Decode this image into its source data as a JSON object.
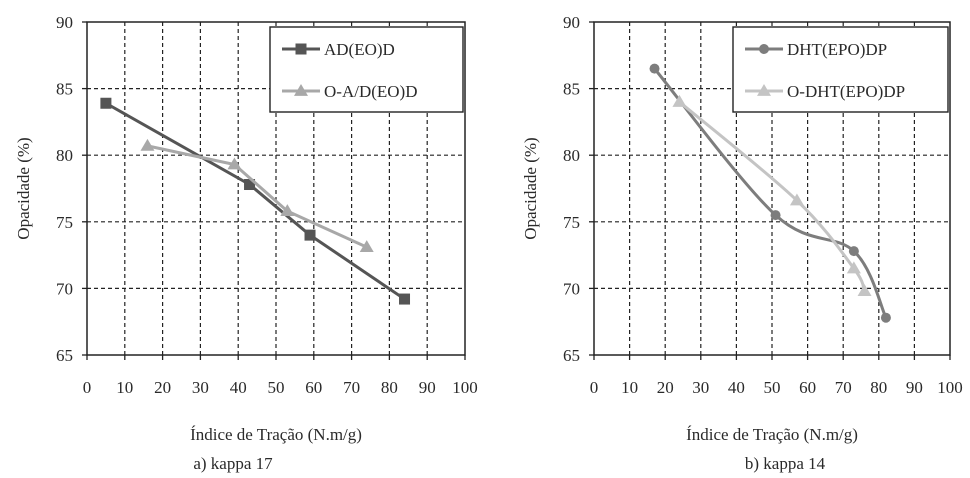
{
  "chart_data": [
    {
      "type": "line",
      "caption": "a) kappa 17",
      "xlabel": "Índice de Tração (N.m/g)",
      "ylabel": "Opacidade (%)",
      "xlim": [
        0,
        100
      ],
      "ylim": [
        65,
        90
      ],
      "xticks": [
        "0",
        "10",
        "20",
        "30",
        "40",
        "50",
        "60",
        "70",
        "80",
        "90",
        "100"
      ],
      "yticks": [
        "65",
        "70",
        "75",
        "80",
        "85",
        "90"
      ],
      "grid": true,
      "legend_position": "top-right",
      "series": [
        {
          "name": "AD(EO)D",
          "color": "#555555",
          "marker": "square",
          "x": [
            5,
            43,
            59,
            84
          ],
          "y": [
            83.9,
            77.8,
            74.0,
            69.2
          ]
        },
        {
          "name": "O-A/D(EO)D",
          "color": "#a8a8a8",
          "marker": "triangle",
          "x": [
            16,
            39,
            53,
            74
          ],
          "y": [
            80.7,
            79.3,
            75.8,
            73.1
          ]
        }
      ]
    },
    {
      "type": "line",
      "caption": "b) kappa 14",
      "xlabel": "Índice de Tração (N.m/g)",
      "ylabel": "Opacidade (%)",
      "xlim": [
        0,
        100
      ],
      "ylim": [
        65,
        90
      ],
      "xticks": [
        "0",
        "10",
        "20",
        "30",
        "40",
        "50",
        "60",
        "70",
        "80",
        "90",
        "100"
      ],
      "yticks": [
        "65",
        "70",
        "75",
        "80",
        "85",
        "90"
      ],
      "grid": true,
      "legend_position": "top-right",
      "series": [
        {
          "name": "DHT(EPO)DP",
          "color": "#7d7d7d",
          "marker": "circle",
          "x": [
            17,
            51,
            73,
            82
          ],
          "y": [
            86.5,
            75.5,
            72.8,
            67.8
          ]
        },
        {
          "name": "O-DHT(EPO)DP",
          "color": "#c4c4c4",
          "marker": "triangle",
          "x": [
            24,
            57,
            73,
            76
          ],
          "y": [
            84.0,
            76.6,
            71.5,
            69.8
          ]
        }
      ]
    }
  ]
}
